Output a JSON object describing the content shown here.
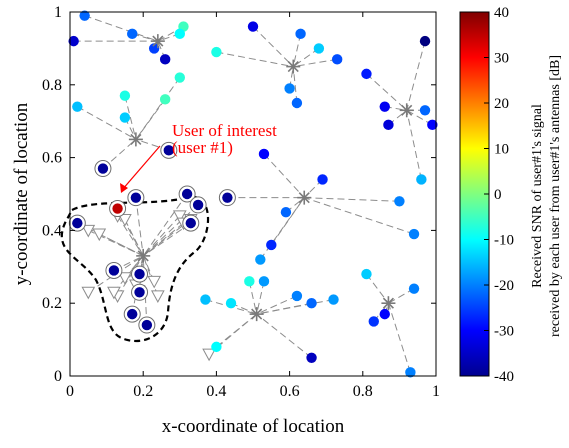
{
  "chart_data": {
    "type": "scatter",
    "xlabel": "x-coordinate of location",
    "ylabel": "y-coordinate of location",
    "xlim": [
      0,
      1
    ],
    "ylim": [
      0,
      1
    ],
    "xticks": [
      "0",
      "0.2",
      "0.4",
      "0.6",
      "0.8",
      "1"
    ],
    "yticks": [
      "0",
      "0.2",
      "0.4",
      "0.6",
      "0.8",
      "1"
    ],
    "colorbar": {
      "label_line1": "Received SNR of user#1's signal",
      "label_line2": "received by each user from user#1's antennas [dB]",
      "range": [
        -40,
        40
      ],
      "ticks": [
        "40",
        "30",
        "20",
        "10",
        "0",
        "-10",
        "-20",
        "-30",
        "-40"
      ],
      "colormap": "jet"
    },
    "annotation": {
      "line1": "User of interest",
      "line2": "(user #1)",
      "color": "#ff0000",
      "target": [
        0.13,
        0.46
      ],
      "text_at": [
        0.27,
        0.62
      ]
    },
    "grid": false,
    "access_points": [
      {
        "x": 0.24,
        "y": 0.92
      },
      {
        "x": 0.61,
        "y": 0.85
      },
      {
        "x": 0.18,
        "y": 0.65
      },
      {
        "x": 0.92,
        "y": 0.73
      },
      {
        "x": 0.64,
        "y": 0.49
      },
      {
        "x": 0.2,
        "y": 0.33
      },
      {
        "x": 0.51,
        "y": 0.17
      },
      {
        "x": 0.87,
        "y": 0.2
      }
    ],
    "users": [
      {
        "x": 0.04,
        "y": 0.99,
        "snr": -22,
        "ap": 0
      },
      {
        "x": 0.01,
        "y": 0.92,
        "snr": -34,
        "ap": 0
      },
      {
        "x": 0.17,
        "y": 0.94,
        "snr": -22,
        "ap": 0
      },
      {
        "x": 0.23,
        "y": 0.9,
        "snr": -25,
        "ap": 0
      },
      {
        "x": 0.26,
        "y": 0.87,
        "snr": -35,
        "ap": 0
      },
      {
        "x": 0.31,
        "y": 0.96,
        "snr": -5,
        "ap": 0
      },
      {
        "x": 0.3,
        "y": 0.94,
        "snr": -10,
        "ap": 0
      },
      {
        "x": 0.4,
        "y": 0.89,
        "snr": -8,
        "ap": 1
      },
      {
        "x": 0.5,
        "y": 0.96,
        "snr": -32,
        "ap": 1
      },
      {
        "x": 0.63,
        "y": 0.94,
        "snr": -22,
        "ap": 1
      },
      {
        "x": 0.68,
        "y": 0.9,
        "snr": -14,
        "ap": 1
      },
      {
        "x": 0.6,
        "y": 0.79,
        "snr": -20,
        "ap": 1
      },
      {
        "x": 0.62,
        "y": 0.75,
        "snr": -22,
        "ap": 1
      },
      {
        "x": 0.73,
        "y": 0.87,
        "snr": -24,
        "ap": 1
      },
      {
        "x": 0.97,
        "y": 0.92,
        "snr": -40,
        "ap": 3
      },
      {
        "x": 0.81,
        "y": 0.83,
        "snr": -28,
        "ap": 3
      },
      {
        "x": 0.86,
        "y": 0.74,
        "snr": -31,
        "ap": 3
      },
      {
        "x": 0.87,
        "y": 0.69,
        "snr": -33,
        "ap": 3
      },
      {
        "x": 0.97,
        "y": 0.73,
        "snr": -22,
        "ap": 3
      },
      {
        "x": 0.99,
        "y": 0.69,
        "snr": -30,
        "ap": 3
      },
      {
        "x": 0.96,
        "y": 0.54,
        "snr": -16,
        "ap": 3
      },
      {
        "x": 0.02,
        "y": 0.74,
        "snr": -15,
        "ap": 2
      },
      {
        "x": 0.15,
        "y": 0.77,
        "snr": -8,
        "ap": 2
      },
      {
        "x": 0.15,
        "y": 0.71,
        "snr": -14,
        "ap": 2
      },
      {
        "x": 0.26,
        "y": 0.76,
        "snr": -5,
        "ap": 2
      },
      {
        "x": 0.3,
        "y": 0.82,
        "snr": -7,
        "ap": 2
      },
      {
        "x": 0.09,
        "y": 0.57,
        "snr": -38,
        "ap": 2,
        "ring": true
      },
      {
        "x": 0.27,
        "y": 0.62,
        "snr": -38,
        "ap": 2,
        "ring": true
      },
      {
        "x": 0.13,
        "y": 0.46,
        "snr": 35,
        "ap": 5,
        "ring": true
      },
      {
        "x": 0.18,
        "y": 0.49,
        "snr": -38,
        "ap": 5,
        "ring": true
      },
      {
        "x": 0.32,
        "y": 0.5,
        "snr": -38,
        "ap": 5,
        "ring": true
      },
      {
        "x": 0.35,
        "y": 0.47,
        "snr": -38,
        "ap": 5,
        "ring": true
      },
      {
        "x": 0.33,
        "y": 0.42,
        "snr": -38,
        "ap": 5,
        "ring": true
      },
      {
        "x": 0.02,
        "y": 0.42,
        "snr": -38,
        "ap": 5,
        "ring": true
      },
      {
        "x": 0.12,
        "y": 0.29,
        "snr": -38,
        "ap": 5,
        "ring": true
      },
      {
        "x": 0.19,
        "y": 0.28,
        "snr": -38,
        "ap": 5,
        "ring": true
      },
      {
        "x": 0.19,
        "y": 0.23,
        "snr": -38,
        "ap": 5,
        "ring": true
      },
      {
        "x": 0.17,
        "y": 0.17,
        "snr": -38,
        "ap": 5,
        "ring": true
      },
      {
        "x": 0.21,
        "y": 0.14,
        "snr": -38,
        "ap": 5,
        "ring": true
      },
      {
        "x": 0.43,
        "y": 0.49,
        "snr": -38,
        "ap": 4,
        "ring": true
      },
      {
        "x": 0.53,
        "y": 0.61,
        "snr": -30,
        "ap": 4
      },
      {
        "x": 0.55,
        "y": 0.36,
        "snr": -27,
        "ap": 4
      },
      {
        "x": 0.52,
        "y": 0.32,
        "snr": -18,
        "ap": 4
      },
      {
        "x": 0.59,
        "y": 0.45,
        "snr": -22,
        "ap": 4
      },
      {
        "x": 0.69,
        "y": 0.54,
        "snr": -27,
        "ap": 4
      },
      {
        "x": 0.9,
        "y": 0.48,
        "snr": -20,
        "ap": 4
      },
      {
        "x": 0.94,
        "y": 0.39,
        "snr": -20,
        "ap": 4
      },
      {
        "x": 0.37,
        "y": 0.21,
        "snr": -15,
        "ap": 6
      },
      {
        "x": 0.44,
        "y": 0.2,
        "snr": -12,
        "ap": 6
      },
      {
        "x": 0.4,
        "y": 0.08,
        "snr": -10,
        "ap": 6
      },
      {
        "x": 0.49,
        "y": 0.26,
        "snr": -8,
        "ap": 6
      },
      {
        "x": 0.53,
        "y": 0.26,
        "snr": -18,
        "ap": 6
      },
      {
        "x": 0.62,
        "y": 0.22,
        "snr": -20,
        "ap": 6
      },
      {
        "x": 0.66,
        "y": 0.2,
        "snr": -22,
        "ap": 6
      },
      {
        "x": 0.66,
        "y": 0.05,
        "snr": -35,
        "ap": 6
      },
      {
        "x": 0.72,
        "y": 0.21,
        "snr": -18,
        "ap": 6
      },
      {
        "x": 0.81,
        "y": 0.28,
        "snr": -14,
        "ap": 7
      },
      {
        "x": 0.83,
        "y": 0.15,
        "snr": -26,
        "ap": 7
      },
      {
        "x": 0.86,
        "y": 0.17,
        "snr": -30,
        "ap": 7
      },
      {
        "x": 0.94,
        "y": 0.24,
        "snr": -20,
        "ap": 7
      },
      {
        "x": 0.93,
        "y": 0.01,
        "snr": -20,
        "ap": 7
      }
    ],
    "zero_snr_users": [
      {
        "x": 0.05,
        "y": 0.4,
        "ap": 5
      },
      {
        "x": 0.08,
        "y": 0.39,
        "ap": 5
      },
      {
        "x": 0.13,
        "y": 0.44,
        "ap": 5
      },
      {
        "x": 0.15,
        "y": 0.43,
        "ap": 5
      },
      {
        "x": 0.3,
        "y": 0.44,
        "ap": 5
      },
      {
        "x": 0.31,
        "y": 0.42,
        "ap": 5
      },
      {
        "x": 0.33,
        "y": 0.43,
        "ap": 5
      },
      {
        "x": 0.15,
        "y": 0.27,
        "ap": 5
      },
      {
        "x": 0.23,
        "y": 0.26,
        "ap": 5
      },
      {
        "x": 0.24,
        "y": 0.22,
        "ap": 5
      },
      {
        "x": 0.13,
        "y": 0.22,
        "ap": 5
      },
      {
        "x": 0.12,
        "y": 0.23,
        "ap": 5
      },
      {
        "x": 0.05,
        "y": 0.23,
        "ap": 5
      },
      {
        "x": 0.18,
        "y": 0.25,
        "ap": 5
      },
      {
        "x": 0.38,
        "y": 0.06,
        "ap": 6
      }
    ]
  }
}
